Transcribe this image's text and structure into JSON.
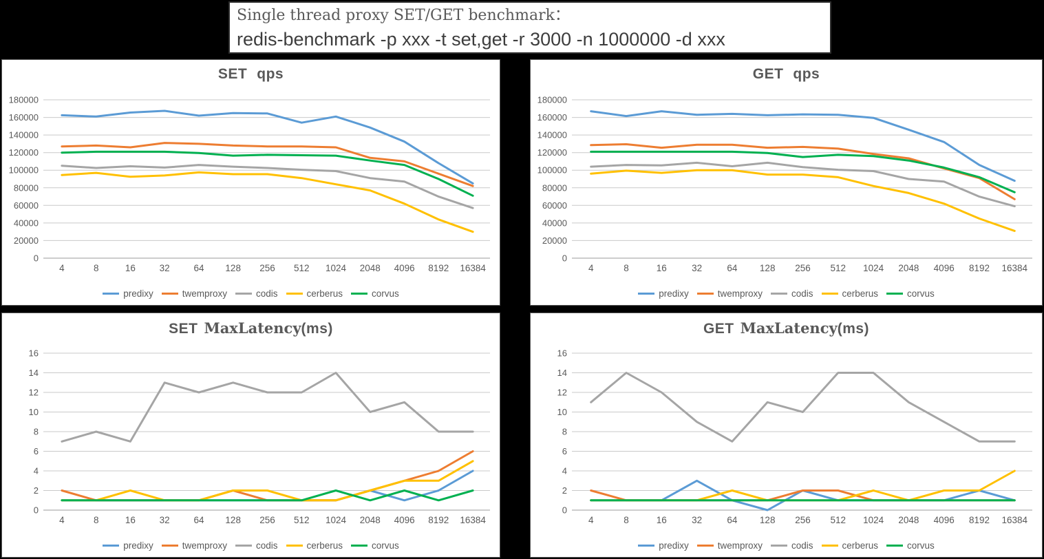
{
  "page": {
    "background": "#000000"
  },
  "header": {
    "line1": "Single thread proxy SET/GET benchmark：",
    "line2": "redis-benchmark -p xxx -t set,get -r 3000 -n 1000000 -d xxx"
  },
  "palette": {
    "predixy": "#5B9BD5",
    "twemproxy": "#ED7D31",
    "codis": "#A5A5A5",
    "cerberus": "#FFC000",
    "corvus": "#00B050"
  },
  "chart_data": [
    {
      "id": "set-qps",
      "type": "line",
      "title_prefix": "SET",
      "title_mid": "",
      "title_suffix": "qps",
      "xlabel": "",
      "ylabel": "",
      "grid": true,
      "legend_position": "bottom",
      "ylim": [
        0,
        180000
      ],
      "yticks": [
        0,
        20000,
        40000,
        60000,
        80000,
        100000,
        120000,
        140000,
        160000,
        180000
      ],
      "categories": [
        "4",
        "8",
        "16",
        "32",
        "64",
        "128",
        "256",
        "512",
        "1024",
        "2048",
        "4096",
        "8192",
        "16384"
      ],
      "series": [
        {
          "name": "predixy",
          "color": "#5B9BD5",
          "values": [
            162500,
            161000,
            165500,
            167500,
            162000,
            165000,
            164500,
            154000,
            161000,
            148500,
            132500,
            108000,
            85000
          ]
        },
        {
          "name": "twemproxy",
          "color": "#ED7D31",
          "values": [
            127000,
            128000,
            126000,
            131000,
            130000,
            128000,
            127000,
            127000,
            126000,
            114000,
            110000,
            96000,
            82000
          ]
        },
        {
          "name": "codis",
          "color": "#A5A5A5",
          "values": [
            105000,
            102500,
            104500,
            103000,
            106000,
            104000,
            102500,
            100500,
            99000,
            91000,
            87000,
            70000,
            57000
          ]
        },
        {
          "name": "cerberus",
          "color": "#FFC000",
          "values": [
            94500,
            97000,
            92500,
            94000,
            97500,
            95500,
            95500,
            91000,
            84000,
            77000,
            62000,
            44000,
            30000
          ]
        },
        {
          "name": "corvus",
          "color": "#00B050",
          "values": [
            120000,
            121000,
            121000,
            121000,
            119500,
            116500,
            117500,
            117000,
            116500,
            111000,
            106000,
            90000,
            71000
          ]
        }
      ]
    },
    {
      "id": "get-qps",
      "type": "line",
      "title_prefix": "GET",
      "title_mid": "",
      "title_suffix": "qps",
      "xlabel": "",
      "ylabel": "",
      "grid": true,
      "legend_position": "bottom",
      "ylim": [
        0,
        180000
      ],
      "yticks": [
        0,
        20000,
        40000,
        60000,
        80000,
        100000,
        120000,
        140000,
        160000,
        180000
      ],
      "categories": [
        "4",
        "8",
        "16",
        "32",
        "64",
        "128",
        "256",
        "512",
        "1024",
        "2048",
        "4096",
        "8192",
        "16384"
      ],
      "series": [
        {
          "name": "predixy",
          "color": "#5B9BD5",
          "values": [
            167000,
            161500,
            167000,
            163000,
            164000,
            162500,
            163500,
            163000,
            159500,
            146000,
            132000,
            106000,
            88000
          ]
        },
        {
          "name": "twemproxy",
          "color": "#ED7D31",
          "values": [
            128500,
            129500,
            125500,
            129000,
            129000,
            125500,
            126500,
            124500,
            118500,
            113500,
            102000,
            91000,
            67000
          ]
        },
        {
          "name": "codis",
          "color": "#A5A5A5",
          "values": [
            104000,
            106000,
            105500,
            108500,
            104500,
            108500,
            103500,
            100500,
            99000,
            90000,
            87000,
            70000,
            59000
          ]
        },
        {
          "name": "cerberus",
          "color": "#FFC000",
          "values": [
            96000,
            99500,
            97000,
            100000,
            100000,
            95000,
            95000,
            92000,
            82000,
            74000,
            62000,
            45000,
            31000
          ]
        },
        {
          "name": "corvus",
          "color": "#00B050",
          "values": [
            121000,
            121000,
            121000,
            121000,
            121000,
            119500,
            115000,
            117500,
            116000,
            111000,
            103000,
            92000,
            75000
          ]
        }
      ]
    },
    {
      "id": "set-maxlatency",
      "type": "line",
      "title_prefix": "SET",
      "title_mid": "MaxLatency",
      "title_suffix": "(ms)",
      "xlabel": "",
      "ylabel": "",
      "grid": true,
      "legend_position": "bottom",
      "ylim": [
        0,
        16
      ],
      "yticks": [
        0,
        2,
        4,
        6,
        8,
        10,
        12,
        14,
        16
      ],
      "categories": [
        "4",
        "8",
        "16",
        "32",
        "64",
        "128",
        "256",
        "512",
        "1024",
        "2048",
        "4096",
        "8192",
        "16384"
      ],
      "series": [
        {
          "name": "predixy",
          "color": "#5B9BD5",
          "values": [
            1,
            1,
            1,
            1,
            1,
            1,
            1,
            1,
            1,
            2,
            1,
            2,
            4
          ]
        },
        {
          "name": "twemproxy",
          "color": "#ED7D31",
          "values": [
            2,
            1,
            1,
            1,
            1,
            2,
            1,
            1,
            1,
            2,
            3,
            4,
            6
          ]
        },
        {
          "name": "codis",
          "color": "#A5A5A5",
          "values": [
            7,
            8,
            7,
            13,
            12,
            13,
            12,
            12,
            14,
            10,
            11,
            8,
            8
          ]
        },
        {
          "name": "cerberus",
          "color": "#FFC000",
          "values": [
            1,
            1,
            2,
            1,
            1,
            2,
            2,
            1,
            1,
            2,
            3,
            3,
            5
          ]
        },
        {
          "name": "corvus",
          "color": "#00B050",
          "values": [
            1,
            1,
            1,
            1,
            1,
            1,
            1,
            1,
            2,
            1,
            2,
            1,
            2
          ]
        }
      ]
    },
    {
      "id": "get-maxlatency",
      "type": "line",
      "title_prefix": "GET",
      "title_mid": "MaxLatency",
      "title_suffix": "(ms)",
      "xlabel": "",
      "ylabel": "",
      "grid": true,
      "legend_position": "bottom",
      "ylim": [
        0,
        16
      ],
      "yticks": [
        0,
        2,
        4,
        6,
        8,
        10,
        12,
        14,
        16
      ],
      "categories": [
        "4",
        "8",
        "16",
        "32",
        "64",
        "128",
        "256",
        "512",
        "1024",
        "2048",
        "4096",
        "8192",
        "16384"
      ],
      "series": [
        {
          "name": "predixy",
          "color": "#5B9BD5",
          "values": [
            1,
            1,
            1,
            3,
            1,
            0,
            2,
            1,
            1,
            1,
            1,
            2,
            1
          ]
        },
        {
          "name": "twemproxy",
          "color": "#ED7D31",
          "values": [
            2,
            1,
            1,
            1,
            1,
            1,
            2,
            2,
            1,
            1,
            1,
            1,
            1
          ]
        },
        {
          "name": "codis",
          "color": "#A5A5A5",
          "values": [
            11,
            14,
            12,
            9,
            7,
            11,
            10,
            14,
            14,
            11,
            9,
            7,
            7
          ]
        },
        {
          "name": "cerberus",
          "color": "#FFC000",
          "values": [
            1,
            1,
            1,
            1,
            2,
            1,
            1,
            1,
            2,
            1,
            2,
            2,
            4
          ]
        },
        {
          "name": "corvus",
          "color": "#00B050",
          "values": [
            1,
            1,
            1,
            1,
            1,
            1,
            1,
            1,
            1,
            1,
            1,
            1,
            1
          ]
        }
      ]
    }
  ]
}
